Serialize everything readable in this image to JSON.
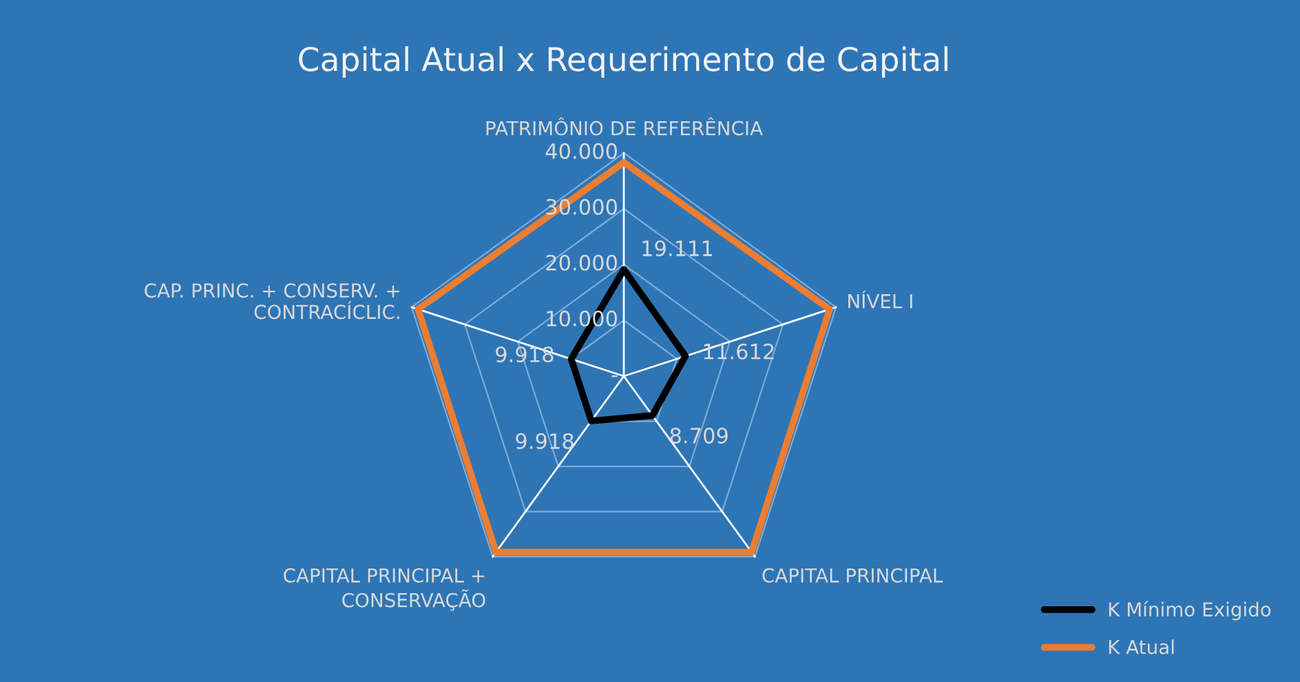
{
  "chart_data": {
    "type": "radar",
    "title": "Capital Atual x Requerimento de Capital",
    "categories": [
      "PATRIMÔNIO DE REFERÊNCIA",
      "NÍVEL I",
      "CAPITAL PRINCIPAL",
      "CAPITAL PRINCIPAL +\nCONSERVAÇÃO",
      "CAP. PRINC. + CONSERV. +\nCONTRACÍCLIC."
    ],
    "series": [
      {
        "name": "K Mínimo Exigido",
        "color": "#000000",
        "values": [
          19111,
          11612,
          8709,
          9918,
          9918
        ],
        "value_labels": [
          "19.111",
          "11.612",
          "8.709",
          "9.918",
          "9.918"
        ]
      },
      {
        "name": "K Atual",
        "color": "#ed7d31",
        "values": [
          38300,
          38800,
          39000,
          39000,
          38800
        ]
      }
    ],
    "ylim": [
      0,
      40000
    ],
    "yticks": [
      {
        "value": 0,
        "label": "-"
      },
      {
        "value": 10000,
        "label": "10.000"
      },
      {
        "value": 20000,
        "label": "20.000"
      },
      {
        "value": 30000,
        "label": "30.000"
      },
      {
        "value": 40000,
        "label": "40.000"
      }
    ],
    "grid": true,
    "legend": "bottom right",
    "marker": "none",
    "line_style": "solid"
  }
}
